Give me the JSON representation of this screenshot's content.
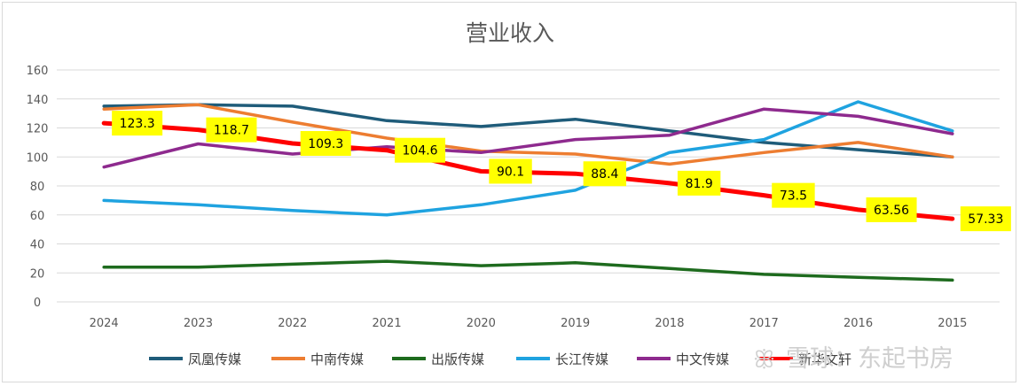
{
  "chart_data": {
    "type": "line",
    "title": "营业收入",
    "categories": [
      "2024",
      "2023",
      "2022",
      "2021",
      "2020",
      "2019",
      "2018",
      "2017",
      "2016",
      "2015"
    ],
    "ylim": [
      0,
      160
    ],
    "yticks": [
      0,
      20,
      40,
      60,
      80,
      100,
      120,
      140,
      160
    ],
    "grid": true,
    "legend_position": "bottom",
    "series": [
      {
        "name": "凤凰传媒",
        "color": "#1f5c7a",
        "values": [
          135,
          136,
          135,
          125,
          121,
          126,
          118,
          110,
          105,
          100
        ]
      },
      {
        "name": "中南传媒",
        "color": "#ed7d31",
        "values": [
          133,
          136,
          124,
          113,
          104,
          102,
          95,
          103,
          110,
          100
        ]
      },
      {
        "name": "出版传媒",
        "color": "#1e6b1e",
        "values": [
          24,
          24,
          26,
          28,
          25,
          27,
          23,
          19,
          17,
          15
        ]
      },
      {
        "name": "长江传媒",
        "color": "#1fa3e0",
        "values": [
          70,
          67,
          63,
          60,
          67,
          77,
          103,
          112,
          138,
          118
        ]
      },
      {
        "name": "中文传媒",
        "color": "#8e2a8e",
        "values": [
          93,
          109,
          102,
          107,
          103,
          112,
          115,
          133,
          128,
          116
        ]
      },
      {
        "name": "新华文轩",
        "color": "#ff0000",
        "values": [
          123.3,
          118.7,
          109.3,
          104.6,
          90.1,
          88.4,
          81.9,
          73.5,
          63.56,
          57.33
        ],
        "labels": [
          "123.3",
          "118.7",
          "109.3",
          "104.6",
          "90.1",
          "88.4",
          "81.9",
          "73.5",
          "63.56",
          "57.33"
        ],
        "label_bg": "#ffff00"
      }
    ]
  },
  "watermark": {
    "text": "雪球：东起书房"
  }
}
